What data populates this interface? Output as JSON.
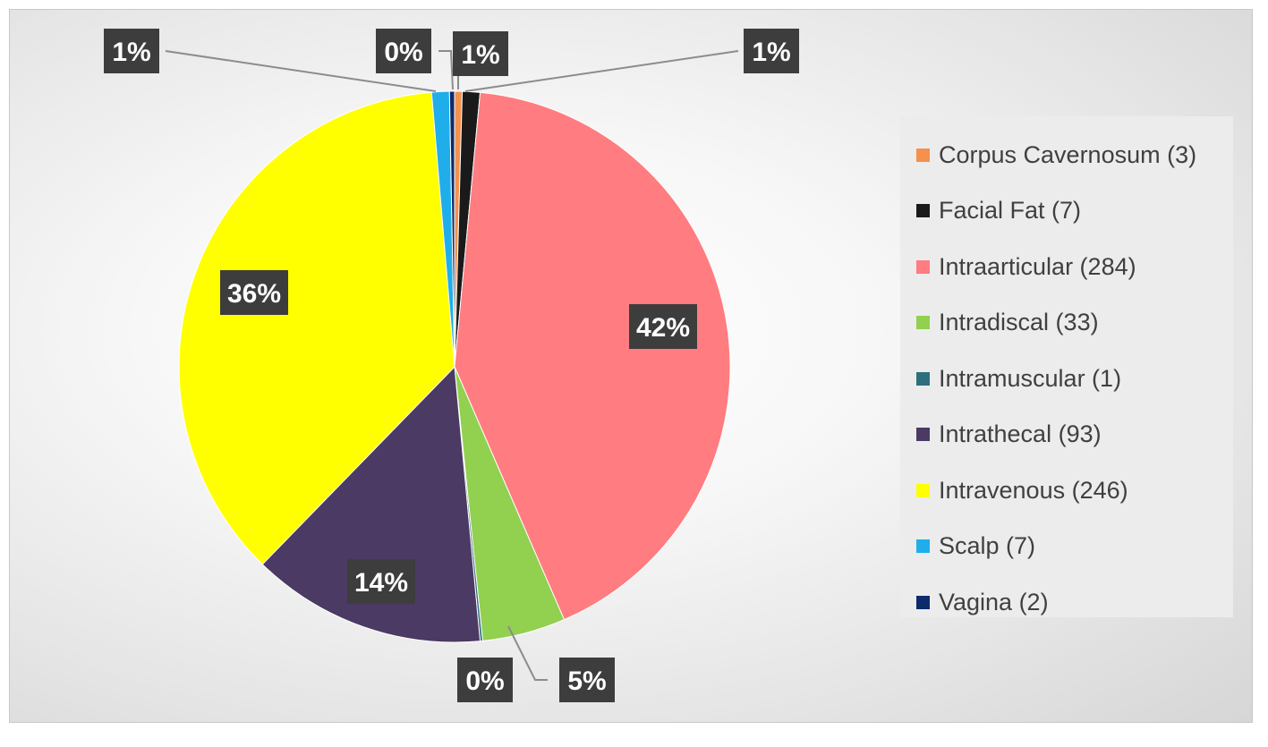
{
  "chart_data": {
    "type": "pie",
    "title": "",
    "legend_position": "right",
    "slices": [
      {
        "label": "Corpus Cavernosum (3)",
        "value": 3,
        "color": "#f4914b",
        "pct_label": "1%"
      },
      {
        "label": "Facial Fat (7)",
        "value": 7,
        "color": "#1a1a1a",
        "pct_label": "1%"
      },
      {
        "label": "Intraarticular (284)",
        "value": 284,
        "color": "#ff7c80",
        "pct_label": "42%"
      },
      {
        "label": "Intradiscal (33)",
        "value": 33,
        "color": "#92d050",
        "pct_label": "5%"
      },
      {
        "label": "Intramuscular (1)",
        "value": 1,
        "color": "#2e6f7e",
        "pct_label": "0%"
      },
      {
        "label": "Intrathecal (93)",
        "value": 93,
        "color": "#4b3a63",
        "pct_label": "14%"
      },
      {
        "label": "Intravenous (246)",
        "value": 246,
        "color": "#ffff00",
        "pct_label": "36%"
      },
      {
        "label": "Scalp (7)",
        "value": 7,
        "color": "#1faeea",
        "pct_label": "1%"
      },
      {
        "label": "Vagina (2)",
        "value": 2,
        "color": "#0d2a6b",
        "pct_label": "0%"
      }
    ]
  }
}
